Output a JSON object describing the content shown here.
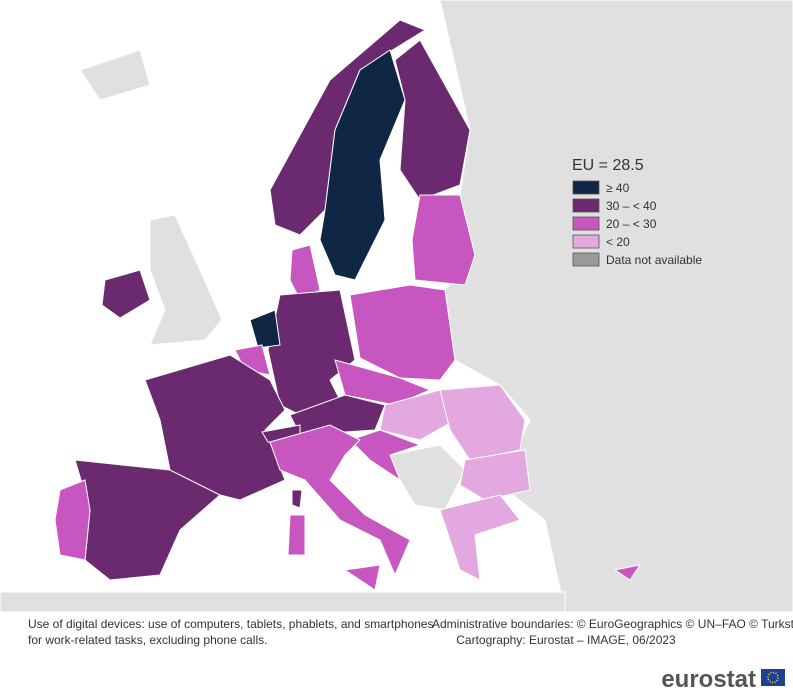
{
  "legend": {
    "title": "EU = 28.5",
    "items": [
      {
        "label": "≥ 40",
        "color": "#0f2645"
      },
      {
        "label": "30 – < 40",
        "color": "#6b2a70"
      },
      {
        "label": "20 – < 30",
        "color": "#c756c0"
      },
      {
        "label": "< 20",
        "color": "#e4a8e0"
      },
      {
        "label": "Data not available",
        "color": "#9a9a9a"
      }
    ]
  },
  "notes": {
    "description": [
      "Use of digital devices: use of computers, tablets, phablets, and smartphones",
      "for work-related tasks, excluding phone calls."
    ],
    "credits": [
      "Administrative boundaries: © EuroGeographics © UN–FAO © Turkstat",
      "Cartography: Eurostat – IMAGE, 06/2023"
    ]
  },
  "logo": "eurostat"
}
